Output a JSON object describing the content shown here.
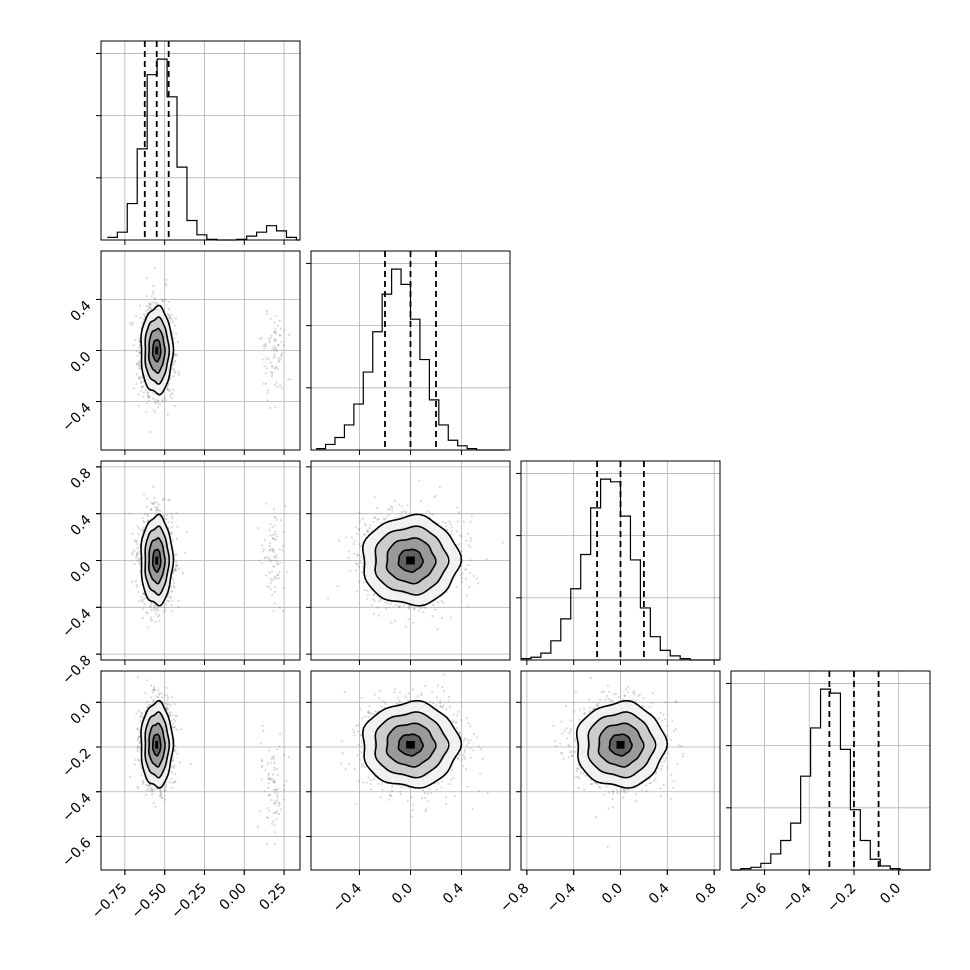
{
  "chart_data": {
    "type": "corner",
    "variables": [
      {
        "range": [
          -0.9,
          0.35
        ],
        "ticks": [
          -0.75,
          -0.5,
          -0.25,
          0.0,
          0.25
        ],
        "tick_labels": [
          "−0.75",
          "−0.50",
          "−0.25",
          "0.00",
          "0.25"
        ]
      },
      {
        "range": [
          -0.78,
          0.78
        ],
        "ticks": [
          -0.4,
          0.0,
          0.4
        ],
        "tick_labels": [
          "−0.4",
          "0.0",
          "0.4"
        ]
      },
      {
        "range": [
          -0.85,
          0.85
        ],
        "ticks": [
          -0.8,
          -0.4,
          0.0,
          0.4,
          0.8
        ],
        "tick_labels": [
          "−0.8",
          "−0.4",
          "0.0",
          "0.4",
          "0.8"
        ]
      },
      {
        "range": [
          -0.75,
          0.14
        ],
        "ticks": [
          -0.6,
          -0.4,
          -0.2,
          0.0
        ],
        "tick_labels": [
          "−0.6",
          "−0.4",
          "−0.2",
          "0.0"
        ]
      }
    ],
    "histograms": [
      {
        "edges_start": -0.86,
        "bin_width": 0.0625,
        "counts": [
          20,
          60,
          280,
          700,
          1270,
          1390,
          1100,
          560,
          150,
          40,
          5,
          0,
          0,
          5,
          30,
          60,
          110,
          70,
          20,
          0
        ],
        "quantiles": [
          -0.625,
          -0.55,
          -0.475
        ]
      },
      {
        "edges_start": -0.74,
        "bin_width": 0.074,
        "counts": [
          10,
          40,
          90,
          180,
          330,
          560,
          850,
          1120,
          1300,
          1190,
          940,
          650,
          360,
          180,
          70,
          30,
          10,
          0,
          0,
          0
        ],
        "quantiles": [
          -0.2,
          0.0,
          0.2
        ]
      },
      {
        "edges_start": -0.85,
        "bin_width": 0.085,
        "counts": [
          10,
          20,
          50,
          140,
          300,
          520,
          770,
          1110,
          1320,
          1300,
          1050,
          730,
          380,
          170,
          70,
          30,
          10,
          0,
          0,
          0
        ],
        "quantiles": [
          -0.2,
          0.0,
          0.2
        ]
      },
      {
        "edges_start": -0.75,
        "bin_width": 0.0445,
        "counts": [
          0,
          10,
          20,
          50,
          120,
          220,
          350,
          700,
          1060,
          1350,
          1320,
          900,
          450,
          220,
          80,
          30,
          10,
          0,
          0,
          0
        ],
        "quantiles": [
          -0.31,
          -0.2,
          -0.09
        ]
      }
    ],
    "pairs": [
      {
        "x": 0,
        "y": 1,
        "modes": [
          {
            "cx": -0.55,
            "cy": 0.0,
            "sx": 0.05,
            "sy": 0.17,
            "w": 0.94
          },
          {
            "cx": 0.18,
            "cy": 0.0,
            "sx": 0.04,
            "sy": 0.17,
            "w": 0.06
          }
        ]
      },
      {
        "x": 0,
        "y": 2,
        "modes": [
          {
            "cx": -0.55,
            "cy": 0.0,
            "sx": 0.05,
            "sy": 0.19,
            "w": 0.94
          },
          {
            "cx": 0.18,
            "cy": 0.0,
            "sx": 0.04,
            "sy": 0.19,
            "w": 0.06
          }
        ]
      },
      {
        "x": 1,
        "y": 2,
        "modes": [
          {
            "cx": 0.0,
            "cy": 0.0,
            "sx": 0.19,
            "sy": 0.19,
            "w": 1.0
          }
        ]
      },
      {
        "x": 0,
        "y": 3,
        "modes": [
          {
            "cx": -0.55,
            "cy": -0.19,
            "sx": 0.05,
            "sy": 0.095,
            "w": 0.94
          },
          {
            "cx": 0.18,
            "cy": -0.38,
            "sx": 0.04,
            "sy": 0.1,
            "w": 0.06
          }
        ]
      },
      {
        "x": 1,
        "y": 3,
        "modes": [
          {
            "cx": 0.0,
            "cy": -0.19,
            "sx": 0.19,
            "sy": 0.095,
            "w": 1.0
          }
        ]
      },
      {
        "x": 2,
        "y": 3,
        "modes": [
          {
            "cx": 0.0,
            "cy": -0.19,
            "sx": 0.19,
            "sy": 0.095,
            "w": 1.0
          }
        ]
      }
    ],
    "contour_levels_sigma": [
      0.5,
      1.0,
      1.5,
      2.0
    ],
    "grid": true
  }
}
